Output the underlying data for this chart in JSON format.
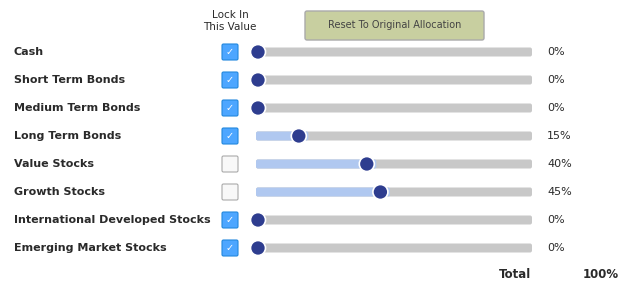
{
  "rows": [
    {
      "label": "Cash",
      "value": 0,
      "checked": true,
      "pct": "0%"
    },
    {
      "label": "Short Term Bonds",
      "value": 0,
      "checked": true,
      "pct": "0%"
    },
    {
      "label": "Medium Term Bonds",
      "value": 0,
      "checked": true,
      "pct": "0%"
    },
    {
      "label": "Long Term Bonds",
      "value": 15,
      "checked": true,
      "pct": "15%"
    },
    {
      "label": "Value Stocks",
      "value": 40,
      "checked": false,
      "pct": "40%"
    },
    {
      "label": "Growth Stocks",
      "value": 45,
      "checked": false,
      "pct": "45%"
    },
    {
      "label": "International Developed Stocks",
      "value": 0,
      "checked": true,
      "pct": "0%"
    },
    {
      "label": "Emerging Market Stocks",
      "value": 0,
      "checked": true,
      "pct": "0%"
    }
  ],
  "total_label": "Total",
  "total_value": "100%",
  "lock_label1": "Lock In",
  "lock_label2": "This Value",
  "button_label": "Reset To Original Allocation",
  "slider_max": 100,
  "bg_color": "#ffffff",
  "label_color": "#2a2a2a",
  "slider_track_color": "#c8c8c8",
  "slider_fill_color": "#b0c8f0",
  "slider_knob_color": "#2e3d8f",
  "checked_box_fill": "#4da6ff",
  "checked_box_edge": "#2288dd",
  "unchecked_box_fill": "#f8f8f8",
  "unchecked_box_edge": "#aaaaaa",
  "check_color": "#ffffff",
  "pct_color": "#2a2a2a",
  "button_bg": "#c8cfa0",
  "button_text_color": "#444444",
  "button_edge_color": "#aaaaaa",
  "fig_w": 6.28,
  "fig_h": 2.98,
  "dpi": 100
}
